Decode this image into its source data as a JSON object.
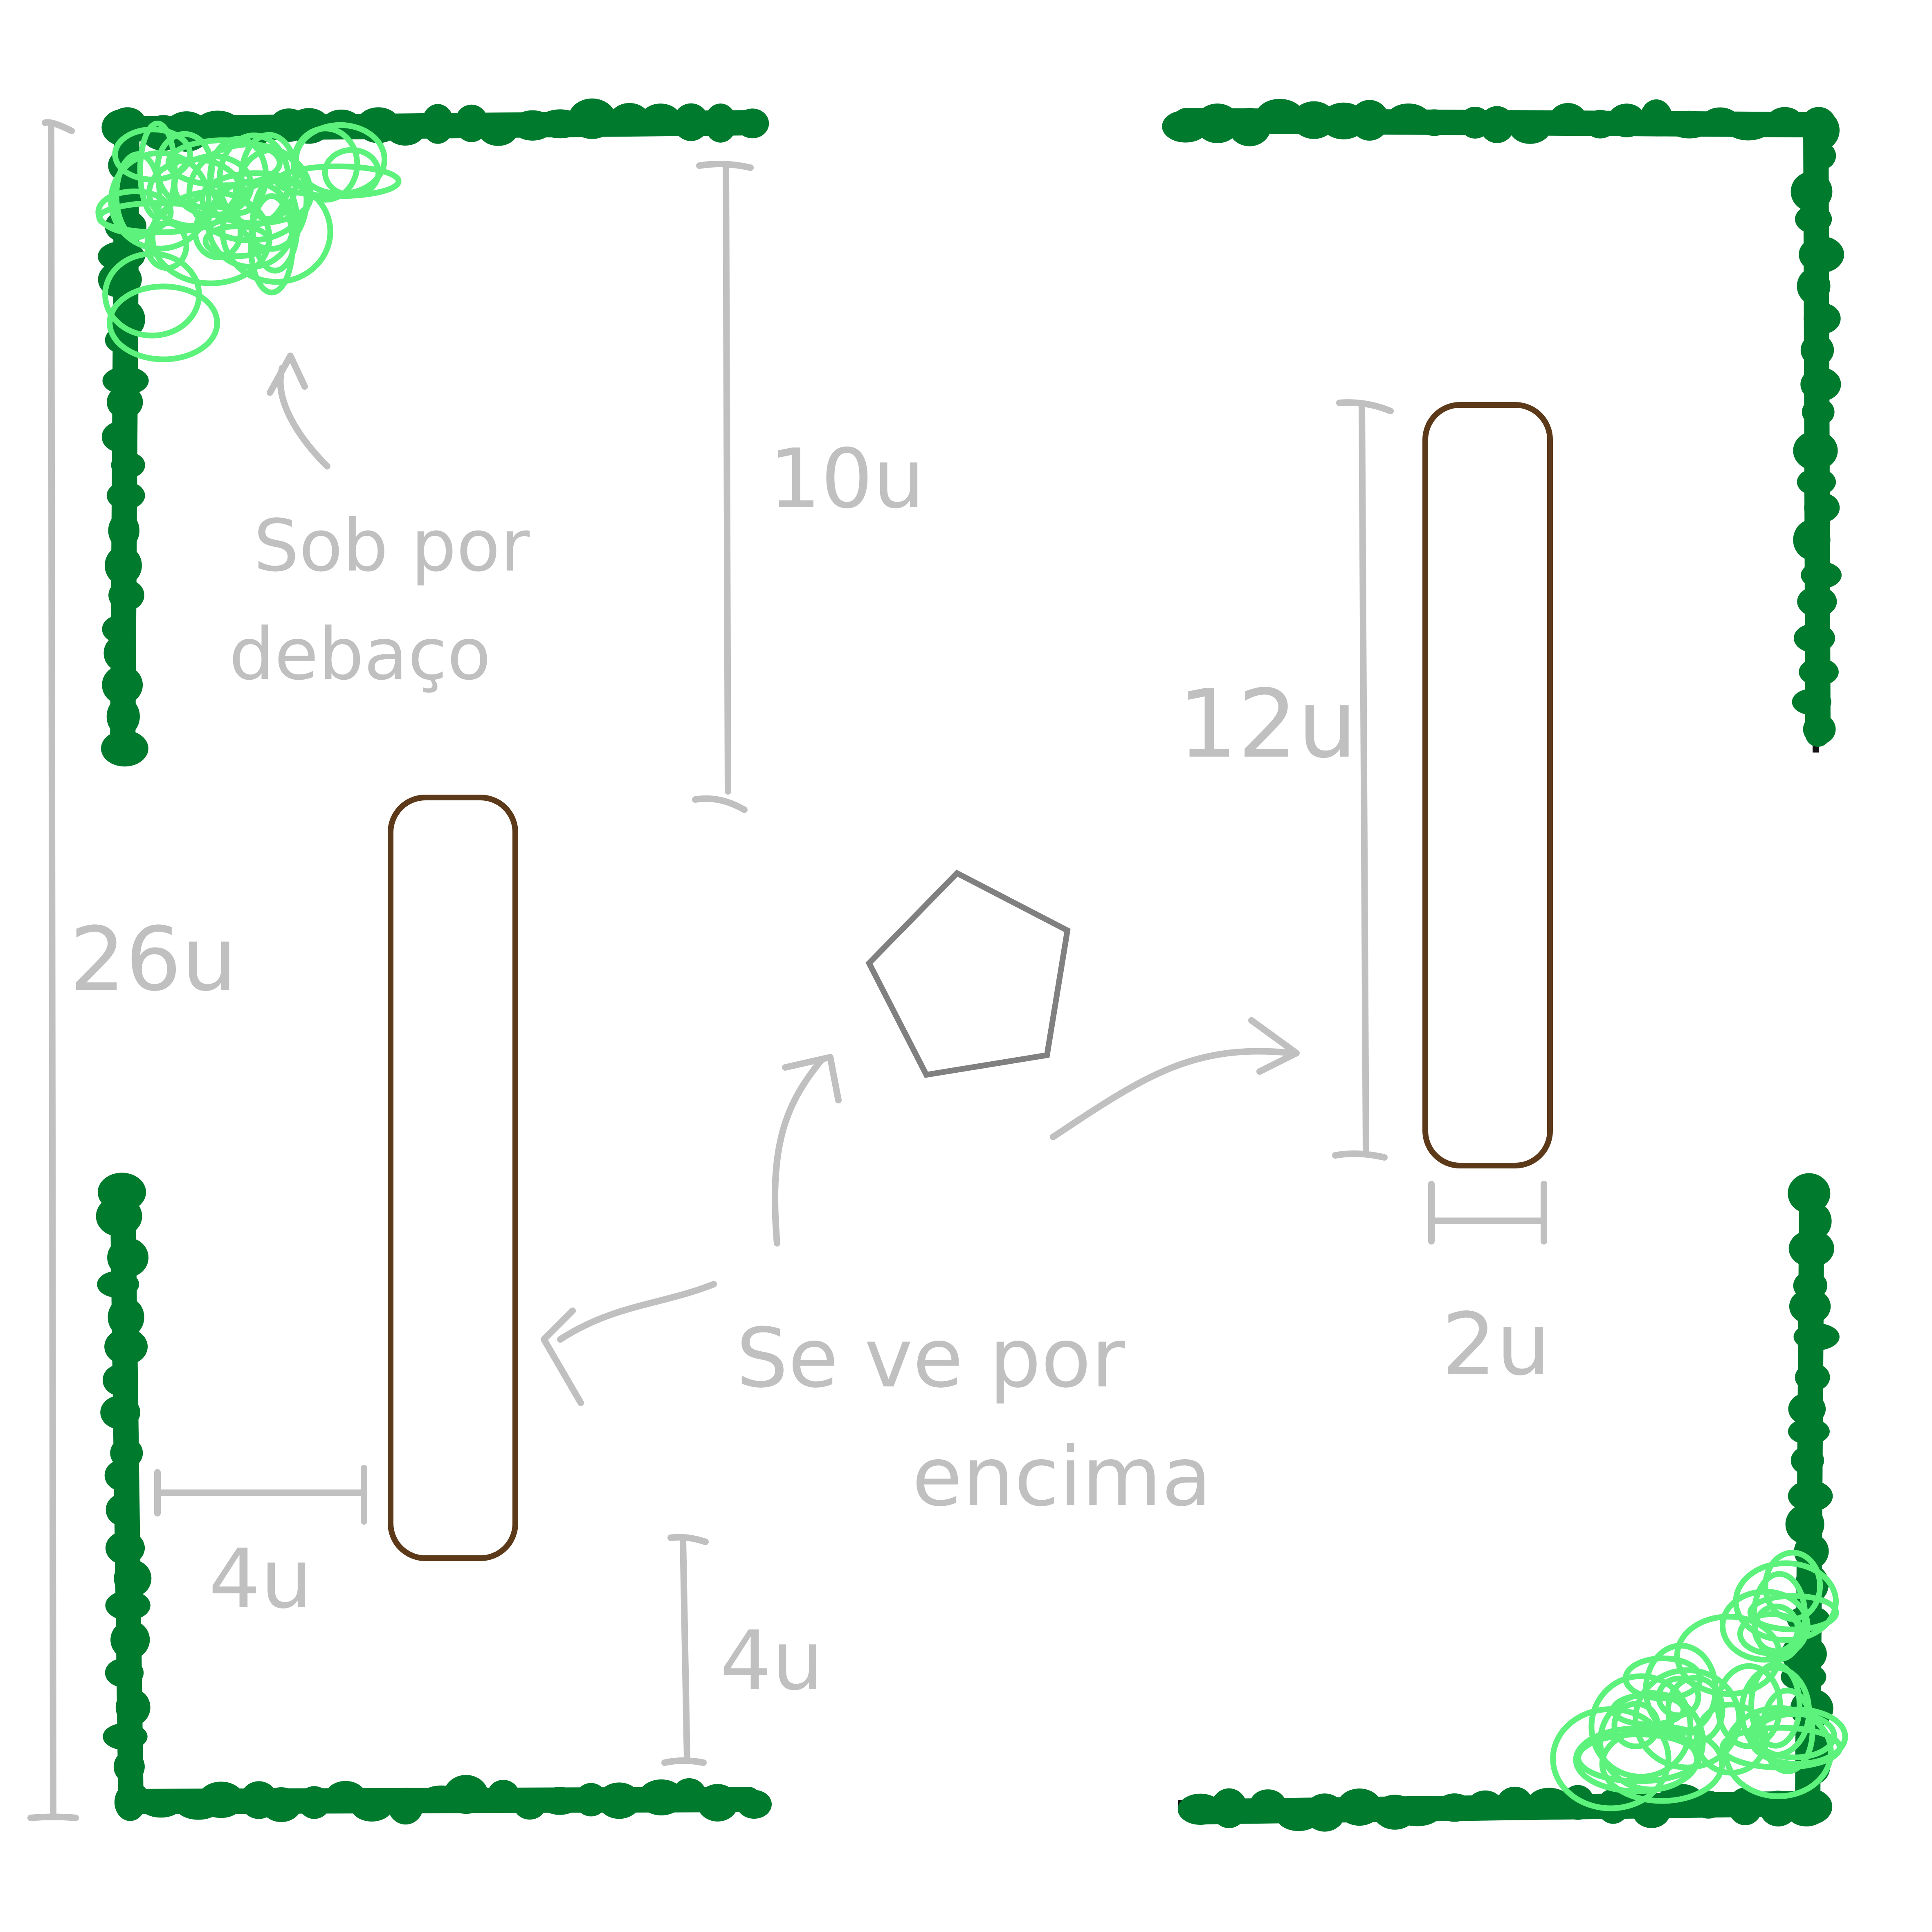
{
  "colors": {
    "hedge_dark": "#007a2c",
    "hedge_light": "#5cf27c",
    "paddle_border": "#5c3918",
    "ball_border": "#808080",
    "annotation": "#c0c0c0",
    "wall": "#111111"
  },
  "labels": {
    "court_height": "26u",
    "top_gap": "10u",
    "paddle_length": "12u",
    "paddle_width": "2u",
    "paddle_offset": "4u",
    "bottom_gap": "4u",
    "under_line1": "Sob por",
    "under_line2": "debaço",
    "over_line1": "Se ve por",
    "over_line2": "encima"
  }
}
